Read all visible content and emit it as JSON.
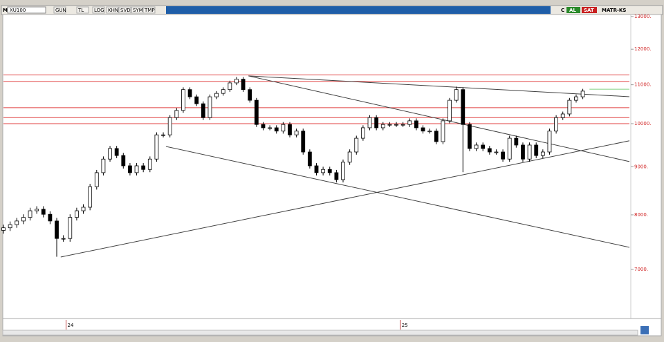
{
  "toolbar": {
    "mode": "M",
    "symbol": "XU100",
    "buttons": [
      "GUN",
      "TL",
      "LOG",
      "KHN",
      "SVD",
      "SYM",
      "TMP"
    ],
    "c_label": "C",
    "buy": "AL",
    "sell": "SAT",
    "template": "MATR-KS"
  },
  "chart_data": {
    "type": "candlestick",
    "log_scale": true,
    "up_color": "#ffffff",
    "down_color": "#000000",
    "line_color": "#000000",
    "tick_label_color": "#d02020",
    "xlim": [
      0,
      470
    ],
    "ylim": [
      6270,
      13130
    ],
    "yticks": [
      {
        "value": 7000,
        "label": "7000."
      },
      {
        "value": 8000,
        "label": "8000."
      },
      {
        "value": 9000,
        "label": "9000."
      },
      {
        "value": 10000,
        "label": "10000."
      },
      {
        "value": 11000,
        "label": "11000."
      },
      {
        "value": 12000,
        "label": "12000."
      },
      {
        "value": 13000,
        "label": "13000."
      }
    ],
    "xticks": [
      {
        "value": 47,
        "label": "24"
      },
      {
        "value": 298,
        "label": "25"
      }
    ],
    "x": [
      0,
      5,
      10,
      15,
      20,
      25,
      30,
      35,
      40,
      45,
      50,
      55,
      60,
      65,
      70,
      75,
      80,
      85,
      90,
      95,
      100,
      105,
      110,
      115,
      120,
      125,
      130,
      135,
      140,
      145,
      150,
      155,
      160,
      165,
      170,
      175,
      180,
      185,
      190,
      195,
      200,
      205,
      210,
      215,
      220,
      225,
      230,
      235,
      240,
      245,
      250,
      255,
      260,
      265,
      270,
      275,
      280,
      285,
      290,
      295,
      300,
      305,
      310,
      315,
      320,
      325,
      330,
      335,
      340,
      345,
      350,
      355,
      360,
      365,
      370,
      375,
      380,
      385,
      390,
      395,
      400,
      405,
      410,
      415,
      420,
      425,
      430,
      435
    ],
    "open": [
      7700,
      7750,
      7810,
      7880,
      7950,
      8080,
      8110,
      8010,
      7880,
      7550,
      7550,
      7950,
      8080,
      8150,
      8570,
      8870,
      9170,
      9410,
      9250,
      9020,
      8870,
      9020,
      8940,
      9170,
      9730,
      9730,
      10150,
      10330,
      10870,
      10680,
      10500,
      10150,
      10680,
      10770,
      10870,
      11050,
      11150,
      10870,
      10590,
      9980,
      9900,
      9900,
      9820,
      9980,
      9730,
      9820,
      9330,
      9020,
      8870,
      8940,
      8870,
      8720,
      9100,
      9330,
      9650,
      9900,
      10150,
      9900,
      9980,
      9980,
      9980,
      9980,
      10070,
      9900,
      9820,
      9820,
      9570,
      10070,
      10590,
      10870,
      9980,
      9410,
      9490,
      9410,
      9330,
      9330,
      9170,
      9650,
      9490,
      9170,
      9490,
      9250,
      9330,
      9820,
      10150,
      10240,
      10590,
      10680
    ],
    "high": [
      7810,
      7870,
      7940,
      8010,
      8140,
      8170,
      8170,
      8070,
      7940,
      7610,
      8010,
      8140,
      8210,
      8630,
      8930,
      9230,
      9470,
      9470,
      9310,
      9080,
      9080,
      9080,
      9230,
      9790,
      9790,
      10210,
      10390,
      10930,
      10930,
      10740,
      10560,
      10740,
      10830,
      10930,
      11110,
      11210,
      11210,
      10930,
      10650,
      10040,
      9960,
      9960,
      10040,
      10040,
      9880,
      9880,
      9390,
      9080,
      9000,
      9000,
      8930,
      9160,
      9390,
      9710,
      9960,
      10210,
      10210,
      10040,
      10040,
      10040,
      10040,
      10130,
      10130,
      9960,
      9880,
      9880,
      10130,
      10650,
      10950,
      10930,
      10040,
      9550,
      9550,
      9470,
      9390,
      9390,
      9710,
      9710,
      9550,
      9550,
      9550,
      9390,
      9880,
      10210,
      10300,
      10650,
      10740,
      10890
    ],
    "low": [
      7640,
      7690,
      7750,
      7820,
      7890,
      8020,
      7950,
      7820,
      7220,
      7490,
      7490,
      7890,
      8020,
      8090,
      8510,
      8810,
      9110,
      9190,
      8960,
      8810,
      8810,
      8880,
      8880,
      9110,
      9670,
      9670,
      10090,
      10270,
      10620,
      10440,
      10090,
      10090,
      10620,
      10710,
      10810,
      10990,
      10810,
      10530,
      9920,
      9840,
      9840,
      9760,
      9760,
      9670,
      9670,
      9270,
      8960,
      8810,
      8810,
      8810,
      8660,
      8660,
      9040,
      9270,
      9590,
      9840,
      9840,
      9840,
      9920,
      9920,
      9920,
      9920,
      9840,
      9760,
      9760,
      9510,
      9510,
      10010,
      10530,
      8880,
      9350,
      9350,
      9350,
      9270,
      9270,
      9110,
      9110,
      9430,
      9110,
      9110,
      9190,
      9190,
      9270,
      9760,
      10090,
      10180,
      10530,
      10620
    ],
    "close": [
      7750,
      7810,
      7880,
      7950,
      8080,
      8110,
      8010,
      7880,
      7550,
      7550,
      7950,
      8080,
      8150,
      8570,
      8870,
      9170,
      9410,
      9250,
      9020,
      8870,
      9020,
      8940,
      9170,
      9730,
      9730,
      10150,
      10330,
      10870,
      10680,
      10500,
      10150,
      10680,
      10770,
      10870,
      11050,
      11150,
      10870,
      10590,
      9980,
      9900,
      9900,
      9820,
      9980,
      9730,
      9820,
      9330,
      9020,
      8870,
      8940,
      8870,
      8720,
      9100,
      9330,
      9650,
      9900,
      10150,
      9900,
      9980,
      9980,
      9980,
      9980,
      10070,
      9900,
      9820,
      9820,
      9570,
      10070,
      10590,
      10870,
      9980,
      9410,
      9490,
      9410,
      9330,
      9330,
      9170,
      9650,
      9490,
      9170,
      9490,
      9250,
      9330,
      9820,
      10150,
      10240,
      10590,
      10680,
      10830
    ],
    "levels": [
      11270,
      11090,
      10400,
      10150,
      10000
    ],
    "level_color": "#e04040",
    "trendlines": [
      {
        "x": [
          43,
          470
        ],
        "y": [
          7215,
          9590
        ],
        "color": "#404040"
      },
      {
        "x": [
          122,
          470
        ],
        "y": [
          9458,
          7388
        ],
        "color": "#404040"
      },
      {
        "x": [
          184,
          470
        ],
        "y": [
          11240,
          9113
        ],
        "color": "#404040"
      },
      {
        "x": [
          184,
          470
        ],
        "y": [
          11240,
          10683
        ],
        "color": "#404040"
      },
      {
        "x": [
          440,
          470
        ],
        "y": [
          10880,
          10880
        ],
        "color": "#80d080"
      }
    ]
  }
}
